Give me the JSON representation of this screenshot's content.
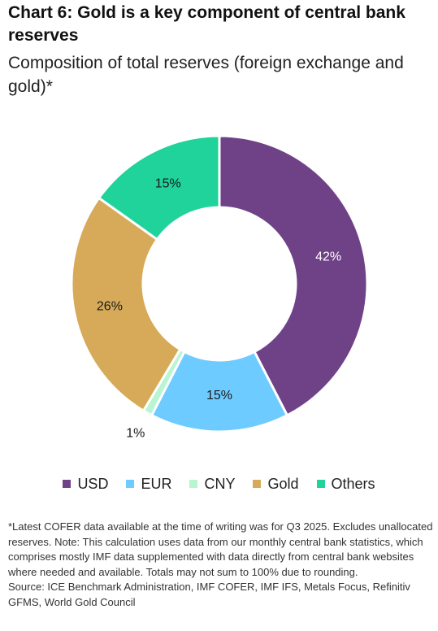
{
  "title": "Chart 6: Gold is a key component of central bank reserves",
  "subtitle": "Composition of total reserves (foreign exchange and gold)*",
  "chart_data": {
    "type": "donut",
    "title": "Chart 6: Gold is a key component of central bank reserves",
    "subtitle": "Composition of total reserves (foreign exchange and gold)*",
    "categories": [
      "USD",
      "EUR",
      "CNY",
      "Gold",
      "Others"
    ],
    "values": [
      42,
      15,
      1,
      26,
      15
    ],
    "labels": [
      "42%",
      "15%",
      "1%",
      "26%",
      "15%"
    ],
    "unit": "%",
    "colors": [
      "#6f4287",
      "#6ecbff",
      "#b8f5d2",
      "#d6aa58",
      "#1fd39a"
    ],
    "legend_position": "bottom"
  },
  "legend": [
    {
      "label": "USD",
      "color": "#6f4287"
    },
    {
      "label": "EUR",
      "color": "#6ecbff"
    },
    {
      "label": "CNY",
      "color": "#b8f5d2"
    },
    {
      "label": "Gold",
      "color": "#d6aa58"
    },
    {
      "label": "Others",
      "color": "#1fd39a"
    }
  ],
  "footnote": {
    "note": "*Latest COFER data available at the time of writing was for Q3 2025. Excludes unallocated reserves. Note: This calculation uses data from our monthly central bank statistics, which comprises mostly IMF data supplemented with data directly from central bank websites where needed and available. Totals may not sum to 100% due to rounding.",
    "source": "Source: ICE Benchmark Administration, IMF COFER, IMF IFS, Metals Focus, Refinitiv GFMS, World Gold Council"
  }
}
